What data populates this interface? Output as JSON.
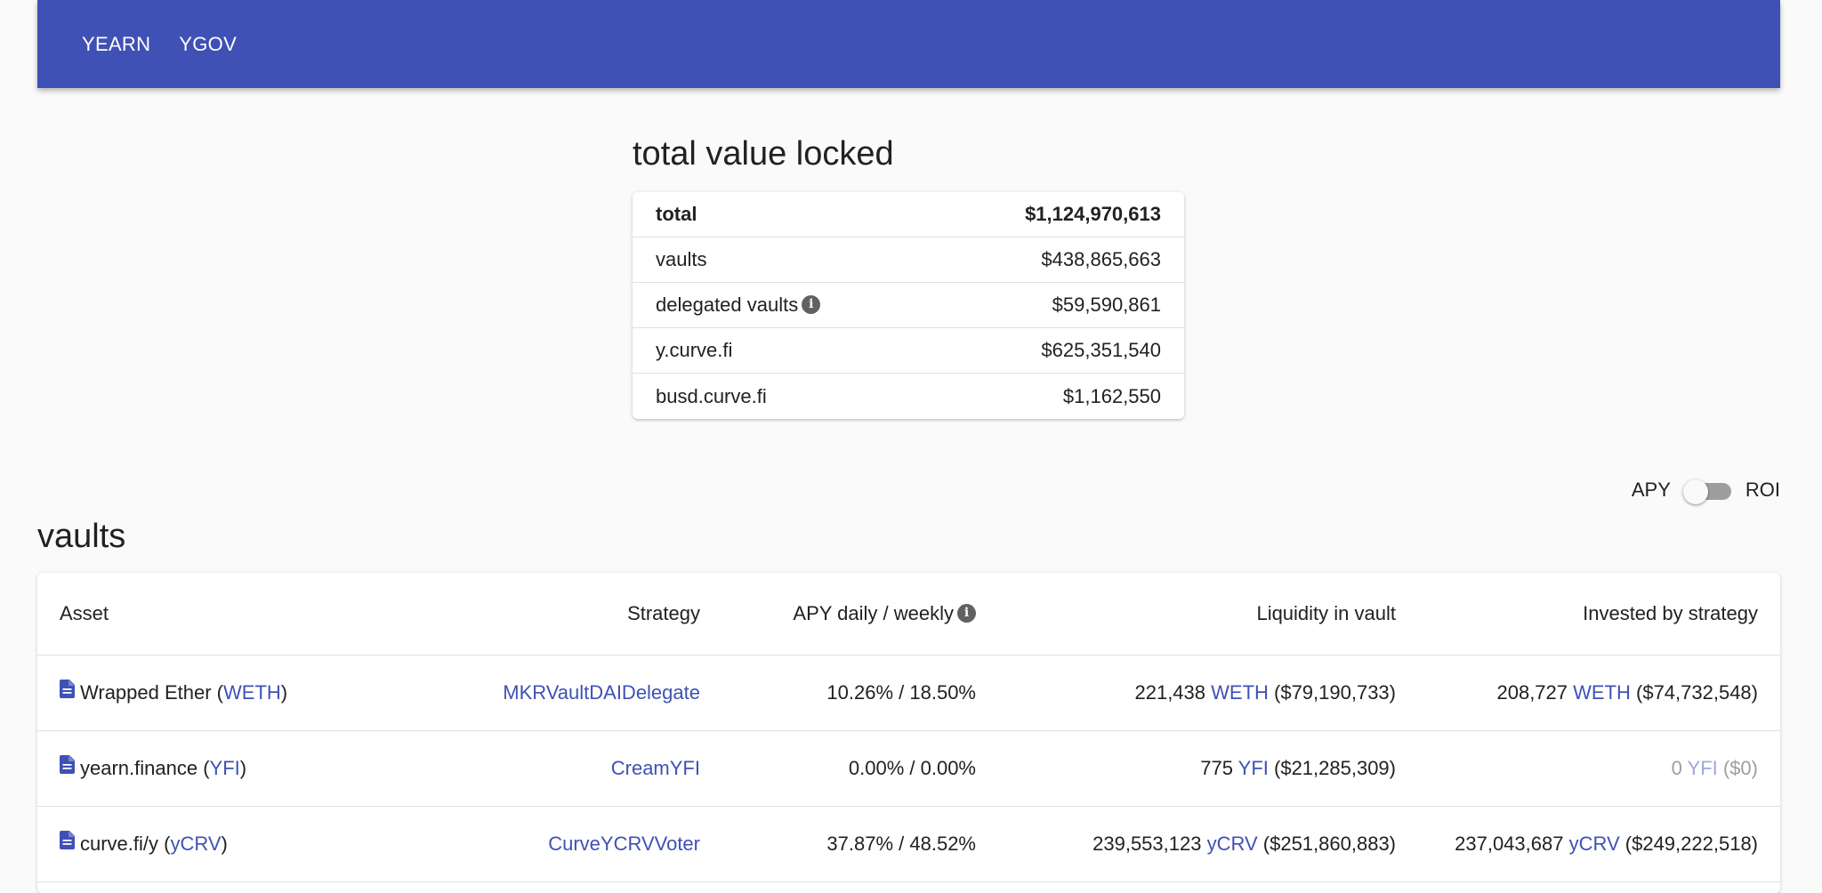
{
  "nav": {
    "items": [
      "YEARN",
      "YGOV"
    ]
  },
  "tvl": {
    "title": "total value locked",
    "rows": [
      {
        "label": "total",
        "value": "$1,124,970,613"
      },
      {
        "label": "vaults",
        "value": "$438,865,663"
      },
      {
        "label": "delegated vaults",
        "value": "$59,590,861",
        "info_icon": "info-icon"
      },
      {
        "label": "y.curve.fi",
        "value": "$625,351,540"
      },
      {
        "label": "busd.curve.fi",
        "value": "$1,162,550"
      }
    ]
  },
  "toggle": {
    "left_label": "APY",
    "right_label": "ROI",
    "state": "off"
  },
  "vaults": {
    "title": "vaults",
    "headers": {
      "asset": "Asset",
      "strategy": "Strategy",
      "apy": "APY daily / weekly",
      "liquidity": "Liquidity in vault",
      "invested": "Invested by strategy"
    },
    "rows": [
      {
        "asset_name": "Wrapped Ether (",
        "asset_symbol": "WETH",
        "asset_close": ")",
        "strategy": "MKRVaultDAIDelegate",
        "apy": "10.26% / 18.50%",
        "liq_amount": "221,438 ",
        "liq_symbol": "WETH",
        "liq_usd": " ($79,190,733)",
        "inv_amount": "208,727 ",
        "inv_symbol": "WETH",
        "inv_usd": " ($74,732,548)"
      },
      {
        "asset_name": "yearn.finance (",
        "asset_symbol": "YFI",
        "asset_close": ")",
        "strategy": "CreamYFI",
        "apy": "0.00% / 0.00%",
        "liq_amount": "775 ",
        "liq_symbol": "YFI",
        "liq_usd": " ($21,285,309)",
        "inv_amount": "0 ",
        "inv_symbol": "YFI",
        "inv_usd": " ($0)"
      },
      {
        "asset_name": "curve.fi/y (",
        "asset_symbol": "yCRV",
        "asset_close": ")",
        "strategy": "CurveYCRVVoter",
        "apy": "37.87% / 48.52%",
        "liq_amount": "239,553,123 ",
        "liq_symbol": "yCRV",
        "liq_usd": " ($251,860,883)",
        "inv_amount": "237,043,687 ",
        "inv_symbol": "yCRV",
        "inv_usd": " ($249,222,518)"
      }
    ]
  },
  "colors": {
    "primary": "#3f51b5",
    "background": "#fafafa",
    "muted": "#9e9e9e"
  }
}
